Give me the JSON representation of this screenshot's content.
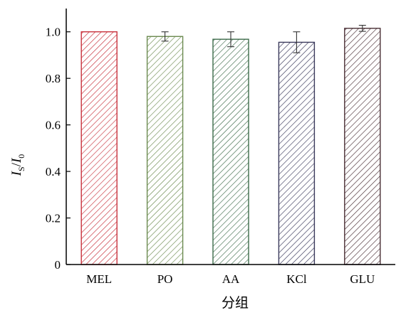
{
  "chart_data": {
    "type": "bar",
    "categories": [
      "MEL",
      "PO",
      "AA",
      "KCl",
      "GLU"
    ],
    "values": [
      1.0,
      0.98,
      0.968,
      0.955,
      1.015
    ],
    "errors": [
      0.0,
      0.02,
      0.032,
      0.045,
      0.013
    ],
    "bar_colors": [
      "#c8323c",
      "#6b8a4f",
      "#3d6b4a",
      "#3b3a5c",
      "#4a2f35"
    ],
    "hatch": "diagonal",
    "xlabel": "分组",
    "ylabel": {
      "main": "I",
      "sub1": "S",
      "slash": "/",
      "main2": "I",
      "sub2": "0"
    },
    "ylim": [
      0,
      1.1
    ],
    "yticks": [
      0,
      0.2,
      0.4,
      0.6,
      0.8,
      1.0
    ],
    "ytick_labels": [
      "0",
      "0.2",
      "0.4",
      "0.6",
      "0.8",
      "1.0"
    ],
    "grid": false,
    "legend": "none"
  }
}
